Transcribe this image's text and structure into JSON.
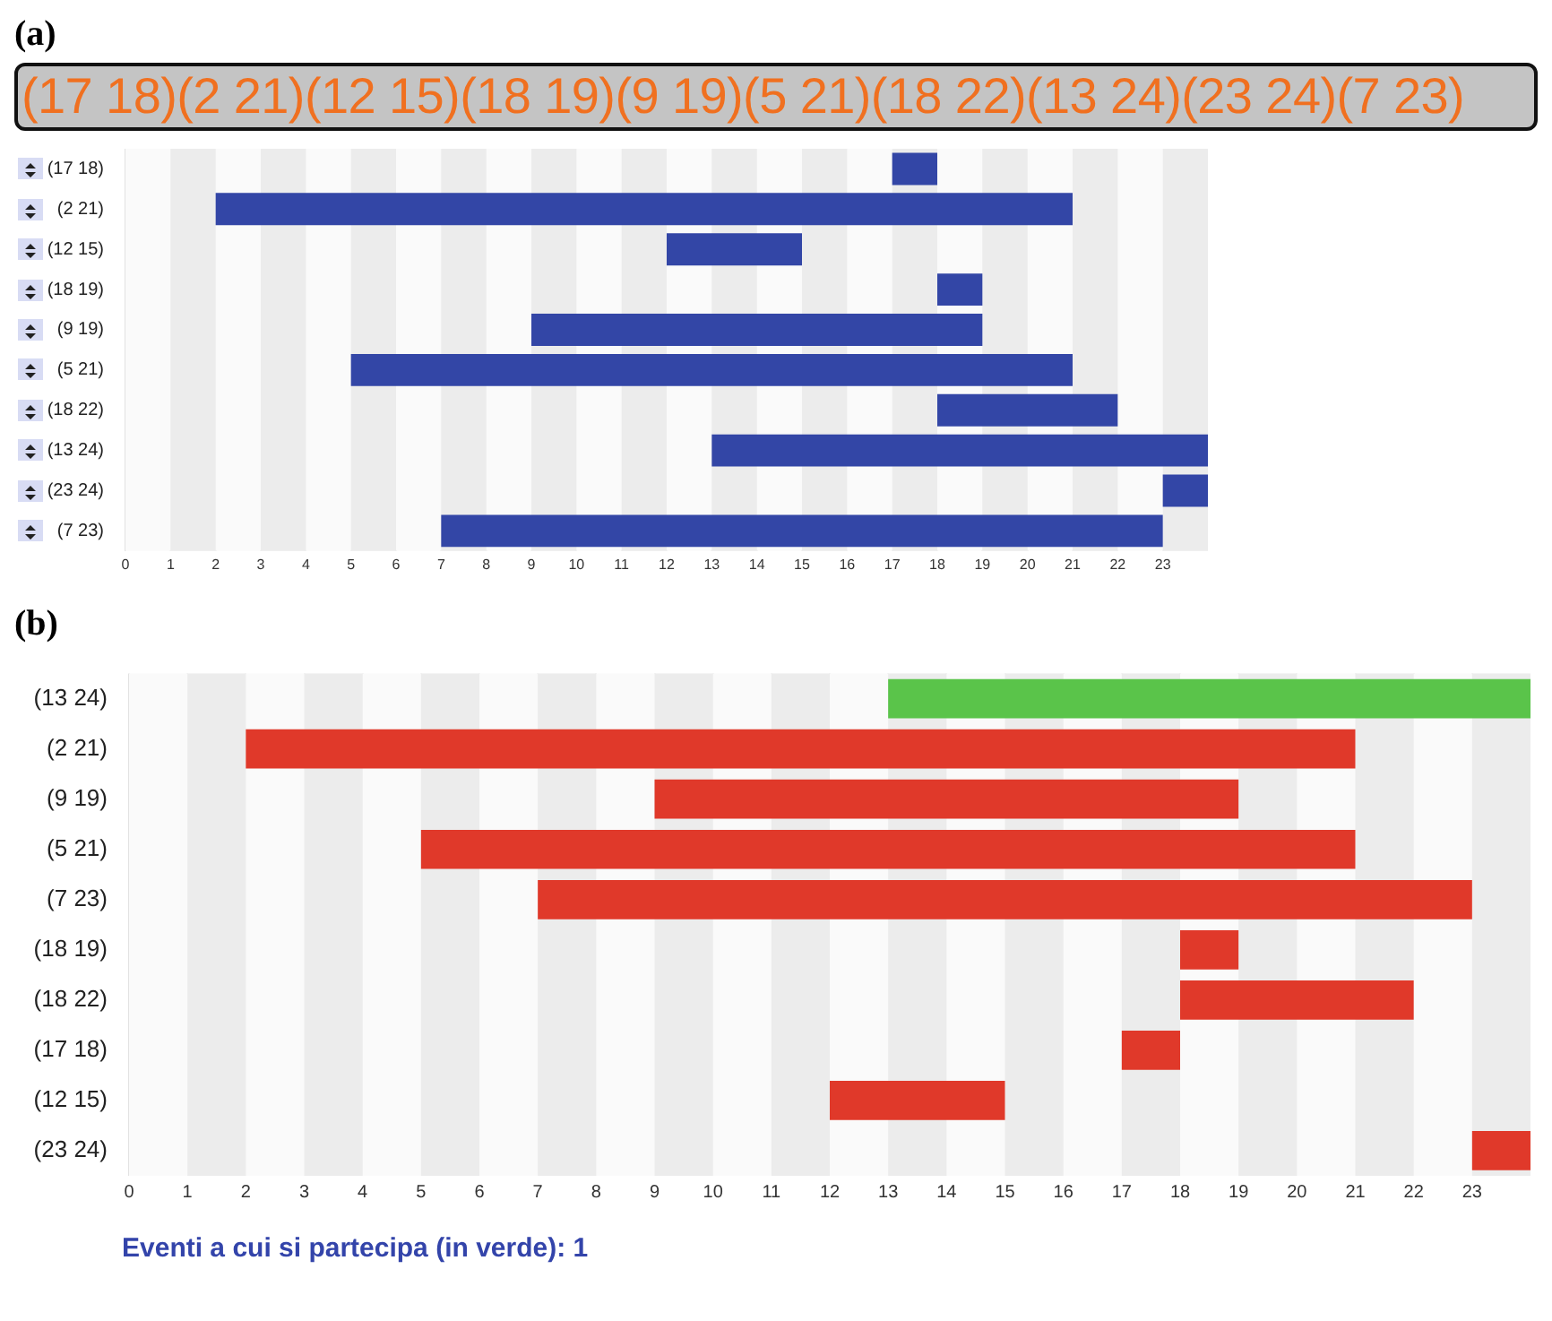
{
  "chart_data": [
    {
      "type": "bar",
      "orientation": "horizontal",
      "title": "(a)",
      "subtitle": "(17 18)(2 21)(12 15)(18 19)(9 19)(5 21)(18 22)(13 24)(23 24)(7 23)",
      "categories": [
        "(17 18)",
        "(2 21)",
        "(12 15)",
        "(18 19)",
        "(9 19)",
        "(5 21)",
        "(18 22)",
        "(13 24)",
        "(23 24)",
        "(7 23)"
      ],
      "base": [
        17,
        2,
        12,
        18,
        9,
        5,
        18,
        13,
        23,
        7
      ],
      "values": [
        1,
        19,
        3,
        1,
        10,
        16,
        4,
        11,
        1,
        16
      ],
      "color": "#3346a6",
      "xlim": [
        0,
        24
      ],
      "xticks": [
        0,
        1,
        2,
        3,
        4,
        5,
        6,
        7,
        8,
        9,
        10,
        11,
        12,
        13,
        14,
        15,
        16,
        17,
        18,
        19,
        20,
        21,
        22,
        23
      ],
      "grid": "x"
    },
    {
      "type": "bar",
      "orientation": "horizontal",
      "title": "(b)",
      "categories": [
        "(13 24)",
        "(2 21)",
        "(9 19)",
        "(5 21)",
        "(7 23)",
        "(18 19)",
        "(18 22)",
        "(17 18)",
        "(12 15)",
        "(23 24)"
      ],
      "base": [
        13,
        2,
        9,
        5,
        7,
        18,
        18,
        17,
        12,
        23
      ],
      "values": [
        11,
        19,
        10,
        16,
        16,
        1,
        4,
        1,
        3,
        1
      ],
      "colors": [
        "#5ac44a",
        "#e0392a",
        "#e0392a",
        "#e0392a",
        "#e0392a",
        "#e0392a",
        "#e0392a",
        "#e0392a",
        "#e0392a",
        "#e0392a"
      ],
      "xlim": [
        0,
        24
      ],
      "xticks": [
        0,
        1,
        2,
        3,
        4,
        5,
        6,
        7,
        8,
        9,
        10,
        11,
        12,
        13,
        14,
        15,
        16,
        17,
        18,
        19,
        20,
        21,
        22,
        23
      ],
      "grid": "x",
      "annotations": [
        "Eventi a cui si partecipa (in verde): 1"
      ]
    }
  ]
}
